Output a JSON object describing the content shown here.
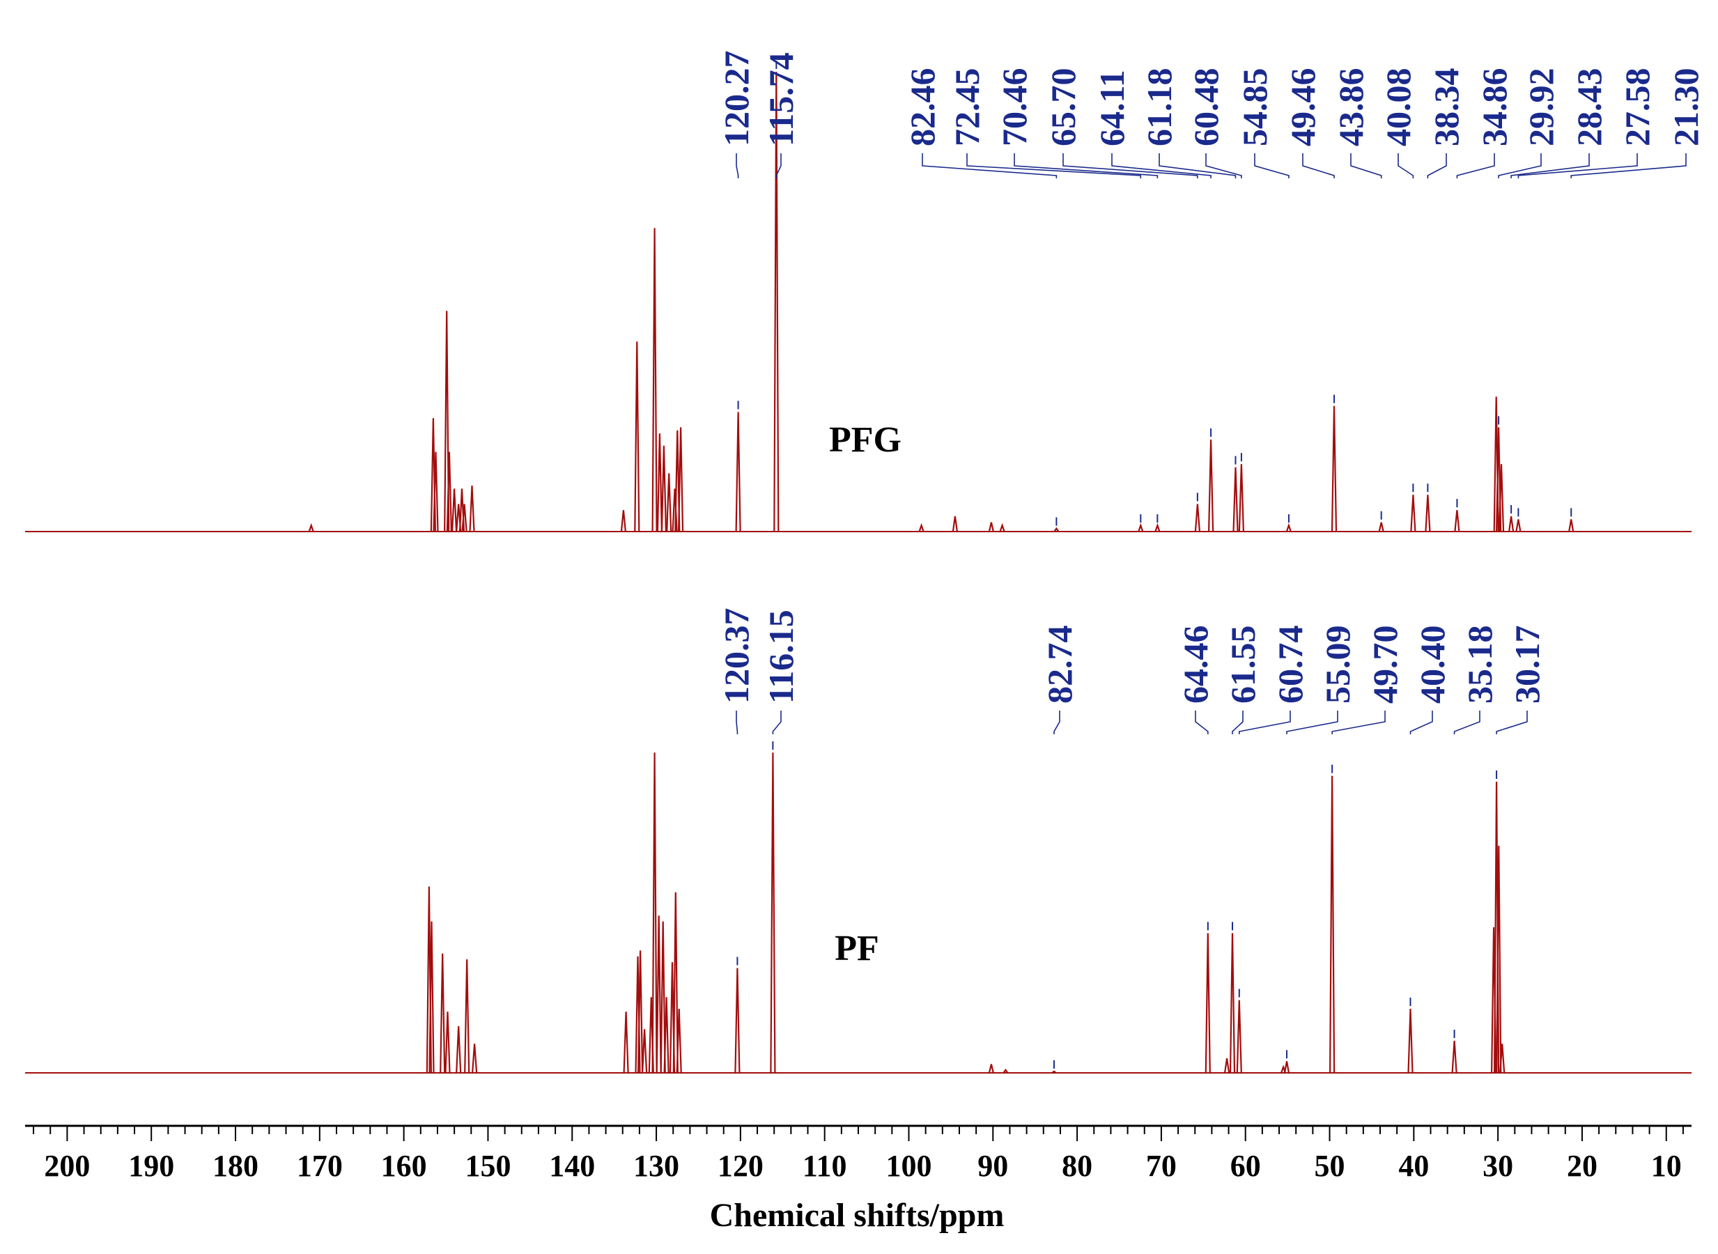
{
  "chart_data": {
    "type": "line",
    "xlabel": "Chemical shifts/ppm",
    "xlim": [
      205,
      7
    ],
    "x_reversed": true,
    "x_ticks": [
      "200",
      "190",
      "180",
      "170",
      "160",
      "150",
      "140",
      "130",
      "120",
      "110",
      "100",
      "90",
      "80",
      "70",
      "60",
      "50",
      "40",
      "30",
      "20",
      "10"
    ],
    "line_color": "#a30d0d",
    "label_color": "#1a2a8c",
    "series": [
      {
        "name": "PFG",
        "peak_labels": [
          "120.27",
          "115.74",
          "82.46",
          "72.45",
          "70.46",
          "65.70",
          "64.11",
          "61.18",
          "60.48",
          "54.85",
          "49.46",
          "43.86",
          "40.08",
          "38.34",
          "34.86",
          "29.92",
          "28.43",
          "27.58",
          "21.30"
        ],
        "peaks": [
          {
            "ppm": 171.0,
            "h": 0.02
          },
          {
            "ppm": 156.5,
            "h": 0.37
          },
          {
            "ppm": 156.2,
            "h": 0.26
          },
          {
            "ppm": 154.9,
            "h": 0.72
          },
          {
            "ppm": 154.6,
            "h": 0.26
          },
          {
            "ppm": 154.0,
            "h": 0.14
          },
          {
            "ppm": 153.5,
            "h": 0.09
          },
          {
            "ppm": 153.1,
            "h": 0.14
          },
          {
            "ppm": 152.8,
            "h": 0.09
          },
          {
            "ppm": 151.9,
            "h": 0.15
          },
          {
            "ppm": 133.9,
            "h": 0.07
          },
          {
            "ppm": 132.3,
            "h": 0.62
          },
          {
            "ppm": 130.2,
            "h": 0.99
          },
          {
            "ppm": 129.6,
            "h": 0.32
          },
          {
            "ppm": 129.1,
            "h": 0.28
          },
          {
            "ppm": 128.5,
            "h": 0.19
          },
          {
            "ppm": 127.8,
            "h": 0.14
          },
          {
            "ppm": 127.5,
            "h": 0.33
          },
          {
            "ppm": 127.1,
            "h": 0.34
          },
          {
            "ppm": 120.27,
            "h": 0.39
          },
          {
            "ppm": 115.74,
            "h": 1.5
          },
          {
            "ppm": 98.5,
            "h": 0.02
          },
          {
            "ppm": 94.5,
            "h": 0.05
          },
          {
            "ppm": 90.2,
            "h": 0.03
          },
          {
            "ppm": 88.9,
            "h": 0.02
          },
          {
            "ppm": 82.46,
            "h": 0.01
          },
          {
            "ppm": 72.45,
            "h": 0.02
          },
          {
            "ppm": 70.46,
            "h": 0.02
          },
          {
            "ppm": 65.7,
            "h": 0.09
          },
          {
            "ppm": 64.11,
            "h": 0.3
          },
          {
            "ppm": 61.18,
            "h": 0.21
          },
          {
            "ppm": 60.48,
            "h": 0.22
          },
          {
            "ppm": 54.85,
            "h": 0.02
          },
          {
            "ppm": 49.46,
            "h": 0.41
          },
          {
            "ppm": 43.86,
            "h": 0.03
          },
          {
            "ppm": 40.08,
            "h": 0.12
          },
          {
            "ppm": 38.34,
            "h": 0.12
          },
          {
            "ppm": 34.86,
            "h": 0.07
          },
          {
            "ppm": 30.2,
            "h": 0.44
          },
          {
            "ppm": 29.92,
            "h": 0.34
          },
          {
            "ppm": 29.6,
            "h": 0.22
          },
          {
            "ppm": 28.43,
            "h": 0.05
          },
          {
            "ppm": 27.58,
            "h": 0.04
          },
          {
            "ppm": 21.3,
            "h": 0.04
          }
        ]
      },
      {
        "name": "PF",
        "peak_labels": [
          "120.37",
          "116.15",
          "82.74",
          "64.46",
          "61.55",
          "60.74",
          "55.09",
          "49.70",
          "40.40",
          "35.18",
          "30.17"
        ],
        "peaks": [
          {
            "ppm": 157.0,
            "h": 0.64
          },
          {
            "ppm": 156.7,
            "h": 0.52
          },
          {
            "ppm": 155.4,
            "h": 0.41
          },
          {
            "ppm": 154.8,
            "h": 0.21
          },
          {
            "ppm": 153.5,
            "h": 0.16
          },
          {
            "ppm": 152.5,
            "h": 0.39
          },
          {
            "ppm": 151.6,
            "h": 0.1
          },
          {
            "ppm": 133.6,
            "h": 0.21
          },
          {
            "ppm": 132.2,
            "h": 0.4
          },
          {
            "ppm": 131.9,
            "h": 0.42
          },
          {
            "ppm": 131.4,
            "h": 0.15
          },
          {
            "ppm": 130.6,
            "h": 0.26
          },
          {
            "ppm": 130.2,
            "h": 1.1
          },
          {
            "ppm": 129.7,
            "h": 0.54
          },
          {
            "ppm": 129.2,
            "h": 0.52
          },
          {
            "ppm": 128.8,
            "h": 0.26
          },
          {
            "ppm": 128.1,
            "h": 0.38
          },
          {
            "ppm": 127.7,
            "h": 0.62
          },
          {
            "ppm": 127.3,
            "h": 0.22
          },
          {
            "ppm": 120.37,
            "h": 0.36
          },
          {
            "ppm": 116.15,
            "h": 1.1
          },
          {
            "ppm": 90.2,
            "h": 0.03
          },
          {
            "ppm": 88.5,
            "h": 0.01
          },
          {
            "ppm": 82.74,
            "h": 0.005
          },
          {
            "ppm": 64.46,
            "h": 0.48
          },
          {
            "ppm": 62.2,
            "h": 0.05
          },
          {
            "ppm": 61.55,
            "h": 0.48
          },
          {
            "ppm": 60.74,
            "h": 0.25
          },
          {
            "ppm": 55.5,
            "h": 0.02
          },
          {
            "ppm": 55.09,
            "h": 0.04
          },
          {
            "ppm": 49.7,
            "h": 1.02
          },
          {
            "ppm": 40.4,
            "h": 0.22
          },
          {
            "ppm": 35.18,
            "h": 0.11
          },
          {
            "ppm": 30.5,
            "h": 0.5
          },
          {
            "ppm": 30.17,
            "h": 1.0
          },
          {
            "ppm": 29.9,
            "h": 0.78
          },
          {
            "ppm": 29.5,
            "h": 0.1
          }
        ]
      }
    ]
  }
}
